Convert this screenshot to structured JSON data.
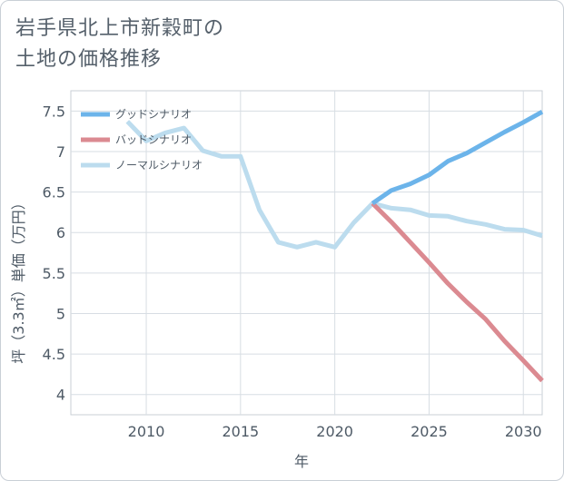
{
  "chart_title_line1": "岩手県北上市新穀町の",
  "chart_title_line2": "土地の価格推移",
  "chart_data": {
    "type": "line",
    "title": "岩手県北上市新穀町の土地の価格推移",
    "xlabel": "年",
    "ylabel": "坪（3.3㎡）単価（万円）",
    "xlim": [
      2006,
      2031
    ],
    "ylim": [
      3.75,
      7.75
    ],
    "x_ticks": [
      2010,
      2015,
      2020,
      2025,
      2030
    ],
    "x_tick_labels": [
      "2010",
      "2015",
      "2020",
      "2025",
      "2030"
    ],
    "y_ticks": [
      4,
      4.5,
      5,
      5.5,
      6,
      6.5,
      7,
      7.5
    ],
    "y_tick_labels": [
      "4",
      "4.5",
      "5",
      "5.5",
      "6",
      "6.5",
      "7",
      "7.5"
    ],
    "grid": true,
    "legend_position": "top-left",
    "series": [
      {
        "name": "グッドシナリオ",
        "color": "#6cb4ea",
        "x": [
          2022,
          2023,
          2024,
          2025,
          2026,
          2027,
          2028,
          2029,
          2030,
          2031
        ],
        "values": [
          6.36,
          6.52,
          6.6,
          6.71,
          6.88,
          6.98,
          7.11,
          7.24,
          7.36,
          7.49
        ]
      },
      {
        "name": "バッドシナリオ",
        "color": "#db8a91",
        "x": [
          2022,
          2023,
          2024,
          2025,
          2026,
          2027,
          2028,
          2029,
          2030,
          2031
        ],
        "values": [
          6.36,
          6.13,
          5.88,
          5.63,
          5.37,
          5.14,
          4.93,
          4.66,
          4.42,
          4.17
        ]
      },
      {
        "name": "ノーマルシナリオ",
        "color": "#bcdcee",
        "x": [
          2009,
          2010,
          2011,
          2012,
          2013,
          2014,
          2015,
          2016,
          2017,
          2018,
          2019,
          2020,
          2021,
          2022,
          2023,
          2024,
          2025,
          2026,
          2027,
          2028,
          2029,
          2030,
          2031
        ],
        "values": [
          7.37,
          7.13,
          7.23,
          7.29,
          7.01,
          6.94,
          6.94,
          6.28,
          5.88,
          5.82,
          5.88,
          5.82,
          6.12,
          6.36,
          6.3,
          6.28,
          6.21,
          6.2,
          6.14,
          6.1,
          6.04,
          6.03,
          5.96
        ]
      }
    ]
  }
}
